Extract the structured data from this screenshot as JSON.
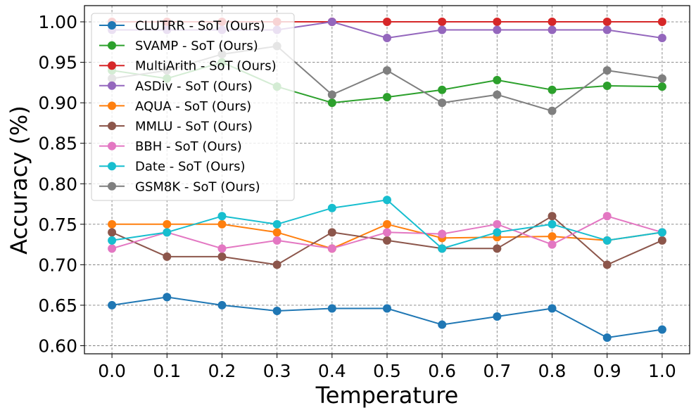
{
  "chart_data": {
    "type": "line",
    "xlabel": "Temperature",
    "ylabel": "Accuracy (%)",
    "x": [
      0.0,
      0.1,
      0.2,
      0.3,
      0.4,
      0.5,
      0.6,
      0.7,
      0.8,
      0.9,
      1.0
    ],
    "x_tick_labels": [
      "0.0",
      "0.1",
      "0.2",
      "0.3",
      "0.4",
      "0.5",
      "0.6",
      "0.7",
      "0.8",
      "0.9",
      "1.0"
    ],
    "y_ticks": [
      0.6,
      0.65,
      0.7,
      0.75,
      0.8,
      0.85,
      0.9,
      0.95,
      1.0
    ],
    "y_tick_labels": [
      "0.60",
      "0.65",
      "0.70",
      "0.75",
      "0.80",
      "0.85",
      "0.90",
      "0.95",
      "1.00"
    ],
    "xlim": [
      -0.05,
      1.05
    ],
    "ylim": [
      0.59,
      1.02
    ],
    "grid": true,
    "legend_position": "upper-left",
    "series": [
      {
        "name": "CLUTRR - SoT (Ours)",
        "color": "#1f77b4",
        "values": [
          0.65,
          0.66,
          0.65,
          0.643,
          0.646,
          0.646,
          0.626,
          0.636,
          0.646,
          0.61,
          0.62
        ]
      },
      {
        "name": "SVAMP - SoT (Ours)",
        "color": "#2ca02c",
        "values": [
          0.94,
          0.93,
          0.95,
          0.92,
          0.9,
          0.907,
          0.916,
          0.928,
          0.916,
          0.921,
          0.92
        ]
      },
      {
        "name": "MultiArith - SoT (Ours)",
        "color": "#d62728",
        "values": [
          1.0,
          1.0,
          1.0,
          1.0,
          1.0,
          1.0,
          1.0,
          1.0,
          1.0,
          1.0,
          1.0
        ]
      },
      {
        "name": "ASDiv - SoT (Ours)",
        "color": "#9467bd",
        "values": [
          0.99,
          0.99,
          0.99,
          0.99,
          1.0,
          0.98,
          0.99,
          0.99,
          0.99,
          0.99,
          0.98
        ]
      },
      {
        "name": "AQUA - SoT (Ours)",
        "color": "#ff7f0e",
        "values": [
          0.75,
          0.75,
          0.75,
          0.74,
          0.72,
          0.75,
          0.733,
          0.734,
          0.735,
          0.73,
          0.74
        ]
      },
      {
        "name": "MMLU - SoT (Ours)",
        "color": "#8c564b",
        "values": [
          0.74,
          0.71,
          0.71,
          0.7,
          0.74,
          0.73,
          0.72,
          0.72,
          0.76,
          0.7,
          0.73
        ]
      },
      {
        "name": "BBH - SoT (Ours)",
        "color": "#e377c2",
        "values": [
          0.72,
          0.74,
          0.72,
          0.73,
          0.72,
          0.74,
          0.738,
          0.75,
          0.725,
          0.76,
          0.74
        ]
      },
      {
        "name": "Date - SoT (Ours)",
        "color": "#17becf",
        "values": [
          0.73,
          0.74,
          0.76,
          0.75,
          0.77,
          0.78,
          0.72,
          0.74,
          0.75,
          0.73,
          0.74
        ]
      },
      {
        "name": "GSM8K - SoT (Ours)",
        "color": "#7f7f7f",
        "values": [
          0.93,
          0.94,
          0.96,
          0.97,
          0.91,
          0.94,
          0.9,
          0.91,
          0.89,
          0.94,
          0.93
        ]
      }
    ]
  }
}
